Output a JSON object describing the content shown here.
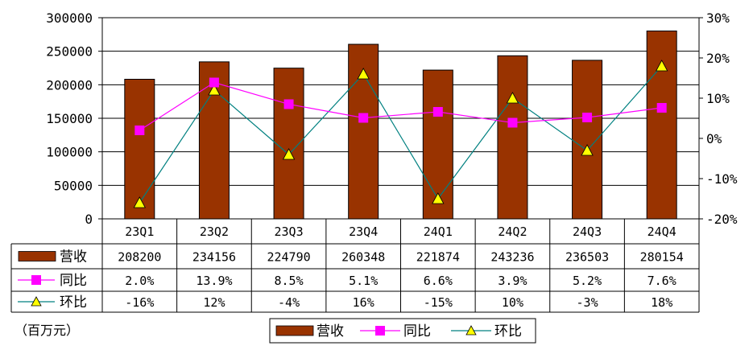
{
  "unit_note": "（百万元）",
  "colors": {
    "bar": "#993300",
    "yoy": "#ff00ff",
    "qoq_line": "#008080",
    "qoq_marker": "#ffff00"
  },
  "chart_data": {
    "type": "bar",
    "categories": [
      "23Q1",
      "23Q2",
      "23Q3",
      "23Q4",
      "24Q1",
      "24Q2",
      "24Q3",
      "24Q4"
    ],
    "y_left": {
      "ylim": [
        0,
        300000
      ],
      "ticks": [
        "0",
        "50000",
        "100000",
        "150000",
        "200000",
        "250000",
        "300000"
      ]
    },
    "y_right": {
      "ylim": [
        -0.2,
        0.3
      ],
      "ticks": [
        "-20%",
        "-10%",
        "0%",
        "10%",
        "20%",
        "30%"
      ]
    },
    "grid": true,
    "legend_position": "bottom",
    "series": [
      {
        "name": "营收",
        "type": "bar",
        "axis": "left",
        "values": [
          208200,
          234156,
          224790,
          260348,
          221874,
          243236,
          236503,
          280154
        ],
        "labels": [
          "208200",
          "234156",
          "224790",
          "260348",
          "221874",
          "243236",
          "236503",
          "280154"
        ]
      },
      {
        "name": "同比",
        "type": "line",
        "axis": "right",
        "marker": "square",
        "values": [
          0.02,
          0.139,
          0.085,
          0.051,
          0.066,
          0.039,
          0.052,
          0.076
        ],
        "labels": [
          "2.0%",
          "13.9%",
          "8.5%",
          "5.1%",
          "6.6%",
          "3.9%",
          "5.2%",
          "7.6%"
        ]
      },
      {
        "name": "环比",
        "type": "line",
        "axis": "right",
        "marker": "triangle",
        "values": [
          -0.16,
          0.12,
          -0.04,
          0.16,
          -0.15,
          0.1,
          -0.03,
          0.18
        ],
        "labels": [
          "-16%",
          "12%",
          "-4%",
          "16%",
          "-15%",
          "10%",
          "-3%",
          "18%"
        ]
      }
    ]
  }
}
